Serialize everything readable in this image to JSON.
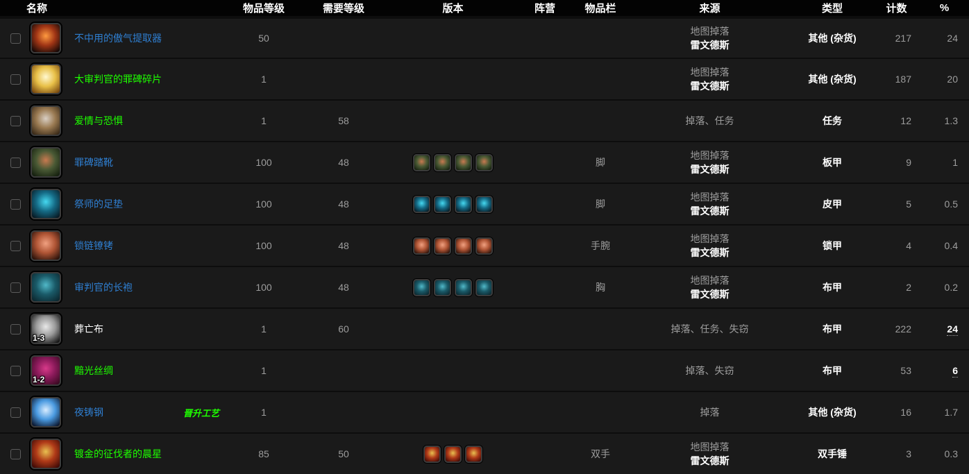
{
  "colors": {
    "quality": {
      "rare": "#2f7fd1",
      "uncommon": "#1eff00",
      "common": "#ffffff"
    },
    "tag_green": "#1eff00",
    "header_bg": "#030303",
    "row_bg": "#1a1a1a"
  },
  "header": {
    "name": "名称",
    "item_level": "物品等级",
    "req_level": "需要等级",
    "version": "版本",
    "faction": "阵营",
    "slot": "物品栏",
    "source": "来源",
    "type": "类型",
    "count": "计数",
    "pct": "%"
  },
  "rows": [
    {
      "name": "不中用的傲气提取器",
      "quality": "rare",
      "ilvl": "50",
      "req": "",
      "versions": 0,
      "faction": "",
      "slot": "",
      "source_lines": [
        "地图掉落",
        "雷文德斯"
      ],
      "type": "其他 (杂货)",
      "count": "217",
      "pct": "24",
      "pct_em": false,
      "badge": "",
      "tag": "",
      "icon": {
        "hi": "#ff9a40",
        "mid": "#a03515",
        "bg": "#140806"
      }
    },
    {
      "name": "大审判官的罪碑碎片",
      "quality": "uncommon",
      "ilvl": "1",
      "req": "",
      "versions": 0,
      "faction": "",
      "slot": "",
      "source_lines": [
        "地图掉落",
        "雷文德斯"
      ],
      "type": "其他 (杂货)",
      "count": "187",
      "pct": "20",
      "pct_em": false,
      "badge": "",
      "tag": "",
      "icon": {
        "hi": "#fff8d0",
        "mid": "#e8c048",
        "bg": "#7a4a10"
      }
    },
    {
      "name": "爱情与恐惧",
      "quality": "uncommon",
      "ilvl": "1",
      "req": "58",
      "versions": 0,
      "faction": "",
      "slot": "",
      "source_lines": [
        "掉落、任务"
      ],
      "type": "任务",
      "count": "12",
      "pct": "1.3",
      "pct_em": false,
      "badge": "",
      "tag": "",
      "icon": {
        "hi": "#d9cfc4",
        "mid": "#9a7a52",
        "bg": "#3a2a18"
      }
    },
    {
      "name": "罪碑踏靴",
      "quality": "rare",
      "ilvl": "100",
      "req": "48",
      "versions": 4,
      "faction": "",
      "slot": "脚",
      "source_lines": [
        "地图掉落",
        "雷文德斯"
      ],
      "type": "板甲",
      "count": "9",
      "pct": "1",
      "pct_em": false,
      "badge": "",
      "tag": "",
      "icon": {
        "hi": "#c87a50",
        "mid": "#4a5a35",
        "bg": "#15200f"
      }
    },
    {
      "name": "祭师的足垫",
      "quality": "rare",
      "ilvl": "100",
      "req": "48",
      "versions": 4,
      "faction": "",
      "slot": "脚",
      "source_lines": [
        "地图掉落",
        "雷文德斯"
      ],
      "type": "皮甲",
      "count": "5",
      "pct": "0.5",
      "pct_em": false,
      "badge": "",
      "tag": "",
      "icon": {
        "hi": "#45d8f0",
        "mid": "#156a85",
        "bg": "#081a24"
      }
    },
    {
      "name": "锁链镣铐",
      "quality": "rare",
      "ilvl": "100",
      "req": "48",
      "versions": 4,
      "faction": "",
      "slot": "手腕",
      "source_lines": [
        "地图掉落",
        "雷文德斯"
      ],
      "type": "锁甲",
      "count": "4",
      "pct": "0.4",
      "pct_em": false,
      "badge": "",
      "tag": "",
      "icon": {
        "hi": "#f0a080",
        "mid": "#b05535",
        "bg": "#2a120a"
      }
    },
    {
      "name": "审判官的长袍",
      "quality": "rare",
      "ilvl": "100",
      "req": "48",
      "versions": 4,
      "faction": "",
      "slot": "胸",
      "source_lines": [
        "地图掉落",
        "雷文德斯"
      ],
      "type": "布甲",
      "count": "2",
      "pct": "0.2",
      "pct_em": false,
      "badge": "",
      "tag": "",
      "icon": {
        "hi": "#50b8c8",
        "mid": "#1a5a68",
        "bg": "#0c2830"
      }
    },
    {
      "name": "葬亡布",
      "quality": "common",
      "ilvl": "1",
      "req": "60",
      "versions": 0,
      "faction": "",
      "slot": "",
      "source_lines": [
        "掉落、任务、失窃"
      ],
      "type": "布甲",
      "count": "222",
      "pct": "24",
      "pct_em": true,
      "badge": "1-3",
      "tag": "",
      "icon": {
        "hi": "#e8e8e8",
        "mid": "#9a9a9a",
        "bg": "#141414"
      }
    },
    {
      "name": "黯光丝绸",
      "quality": "uncommon",
      "ilvl": "1",
      "req": "",
      "versions": 0,
      "faction": "",
      "slot": "",
      "source_lines": [
        "掉落、失窃"
      ],
      "type": "布甲",
      "count": "53",
      "pct": "6",
      "pct_em": true,
      "badge": "1-2",
      "tag": "",
      "icon": {
        "hi": "#d83a8a",
        "mid": "#8a1a5a",
        "bg": "#3a0a22"
      }
    },
    {
      "name": "夜铸钢",
      "quality": "rare",
      "ilvl": "1",
      "req": "",
      "versions": 0,
      "faction": "",
      "slot": "",
      "source_lines": [
        "掉落"
      ],
      "type": "其他 (杂货)",
      "count": "16",
      "pct": "1.7",
      "pct_em": false,
      "badge": "",
      "tag": "晋升工艺",
      "icon": {
        "hi": "#d8ecff",
        "mid": "#4a9ae0",
        "bg": "#0c1830"
      }
    },
    {
      "name": "镀金的征伐者的晨星",
      "quality": "uncommon",
      "ilvl": "85",
      "req": "50",
      "versions": 3,
      "faction": "",
      "slot": "双手",
      "source_lines": [
        "地图掉落",
        "雷文德斯"
      ],
      "type": "双手锤",
      "count": "3",
      "pct": "0.3",
      "pct_em": false,
      "badge": "",
      "tag": "",
      "icon": {
        "hi": "#e8c050",
        "mid": "#b03a18",
        "bg": "#400a06"
      }
    }
  ]
}
